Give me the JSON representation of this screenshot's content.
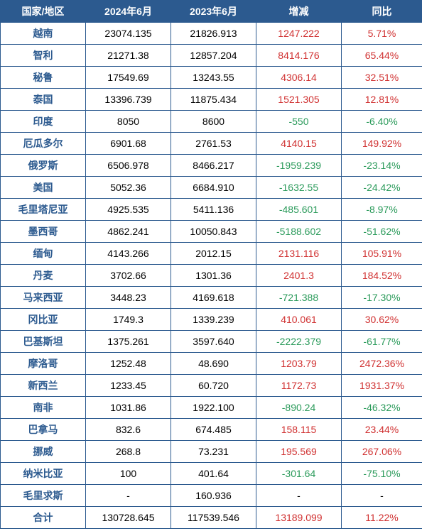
{
  "colors": {
    "header_bg": "#2c5a8f",
    "header_text": "#ffffff",
    "border": "#2c5a8f",
    "country_text": "#2c5a8f",
    "num_text": "#000000",
    "pos_text": "#d03030",
    "neg_text": "#2a9a5a"
  },
  "columns": [
    "国家/地区",
    "2024年6月",
    "2023年6月",
    "增减",
    "同比"
  ],
  "rows": [
    {
      "country": "越南",
      "v2024": "23074.135",
      "v2023": "21826.913",
      "delta": "1247.222",
      "pct": "5.71%",
      "sign": 1
    },
    {
      "country": "智利",
      "v2024": "21271.38",
      "v2023": "12857.204",
      "delta": "8414.176",
      "pct": "65.44%",
      "sign": 1
    },
    {
      "country": "秘鲁",
      "v2024": "17549.69",
      "v2023": "13243.55",
      "delta": "4306.14",
      "pct": "32.51%",
      "sign": 1
    },
    {
      "country": "泰国",
      "v2024": "13396.739",
      "v2023": "11875.434",
      "delta": "1521.305",
      "pct": "12.81%",
      "sign": 1
    },
    {
      "country": "印度",
      "v2024": "8050",
      "v2023": "8600",
      "delta": "-550",
      "pct": "-6.40%",
      "sign": -1
    },
    {
      "country": "厄瓜多尔",
      "v2024": "6901.68",
      "v2023": "2761.53",
      "delta": "4140.15",
      "pct": "149.92%",
      "sign": 1
    },
    {
      "country": "俄罗斯",
      "v2024": "6506.978",
      "v2023": "8466.217",
      "delta": "-1959.239",
      "pct": "-23.14%",
      "sign": -1
    },
    {
      "country": "美国",
      "v2024": "5052.36",
      "v2023": "6684.910",
      "delta": "-1632.55",
      "pct": "-24.42%",
      "sign": -1
    },
    {
      "country": "毛里塔尼亚",
      "v2024": "4925.535",
      "v2023": "5411.136",
      "delta": "-485.601",
      "pct": "-8.97%",
      "sign": -1
    },
    {
      "country": "墨西哥",
      "v2024": "4862.241",
      "v2023": "10050.843",
      "delta": "-5188.602",
      "pct": "-51.62%",
      "sign": -1
    },
    {
      "country": "缅甸",
      "v2024": "4143.266",
      "v2023": "2012.15",
      "delta": "2131.116",
      "pct": "105.91%",
      "sign": 1
    },
    {
      "country": "丹麦",
      "v2024": "3702.66",
      "v2023": "1301.36",
      "delta": "2401.3",
      "pct": "184.52%",
      "sign": 1
    },
    {
      "country": "马来西亚",
      "v2024": "3448.23",
      "v2023": "4169.618",
      "delta": "-721.388",
      "pct": "-17.30%",
      "sign": -1
    },
    {
      "country": "冈比亚",
      "v2024": "1749.3",
      "v2023": "1339.239",
      "delta": "410.061",
      "pct": "30.62%",
      "sign": 1
    },
    {
      "country": "巴基斯坦",
      "v2024": "1375.261",
      "v2023": "3597.640",
      "delta": "-2222.379",
      "pct": "-61.77%",
      "sign": -1
    },
    {
      "country": "摩洛哥",
      "v2024": "1252.48",
      "v2023": "48.690",
      "delta": "1203.79",
      "pct": "2472.36%",
      "sign": 1
    },
    {
      "country": "新西兰",
      "v2024": "1233.45",
      "v2023": "60.720",
      "delta": "1172.73",
      "pct": "1931.37%",
      "sign": 1
    },
    {
      "country": "南非",
      "v2024": "1031.86",
      "v2023": "1922.100",
      "delta": "-890.24",
      "pct": "-46.32%",
      "sign": -1
    },
    {
      "country": "巴拿马",
      "v2024": "832.6",
      "v2023": "674.485",
      "delta": "158.115",
      "pct": "23.44%",
      "sign": 1
    },
    {
      "country": "挪威",
      "v2024": "268.8",
      "v2023": "73.231",
      "delta": "195.569",
      "pct": "267.06%",
      "sign": 1
    },
    {
      "country": "纳米比亚",
      "v2024": "100",
      "v2023": "401.64",
      "delta": "-301.64",
      "pct": "-75.10%",
      "sign": -1
    },
    {
      "country": "毛里求斯",
      "v2024": "-",
      "v2023": "160.936",
      "delta": "-",
      "pct": "-",
      "sign": 0
    },
    {
      "country": "合计",
      "v2024": "130728.645",
      "v2023": "117539.546",
      "delta": "13189.099",
      "pct": "11.22%",
      "sign": 1
    }
  ]
}
